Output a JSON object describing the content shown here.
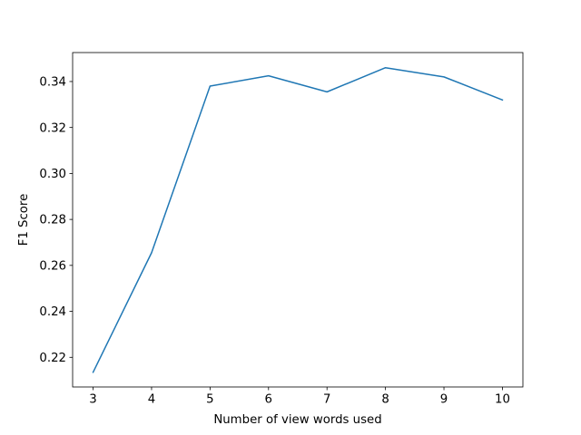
{
  "chart_data": {
    "type": "line",
    "xlabel": "Number of view words used",
    "ylabel": "F1 Score",
    "xlim": [
      2.65,
      10.35
    ],
    "ylim": [
      0.2071,
      0.3526
    ],
    "x_ticks": [
      3,
      4,
      5,
      6,
      7,
      8,
      9,
      10
    ],
    "x_tick_labels": [
      "3",
      "4",
      "5",
      "6",
      "7",
      "8",
      "9",
      "10"
    ],
    "y_ticks": [
      0.22,
      0.24,
      0.26,
      0.28,
      0.3,
      0.32,
      0.34
    ],
    "y_tick_labels": [
      "0.22",
      "0.24",
      "0.26",
      "0.28",
      "0.30",
      "0.32",
      "0.34"
    ],
    "grid": false,
    "series": [
      {
        "color": "#1f77b4",
        "x": [
          3,
          4,
          5,
          6,
          7,
          8,
          9,
          10
        ],
        "y": [
          0.2135,
          0.2655,
          0.338,
          0.3425,
          0.3355,
          0.346,
          0.342,
          0.332
        ]
      }
    ]
  }
}
